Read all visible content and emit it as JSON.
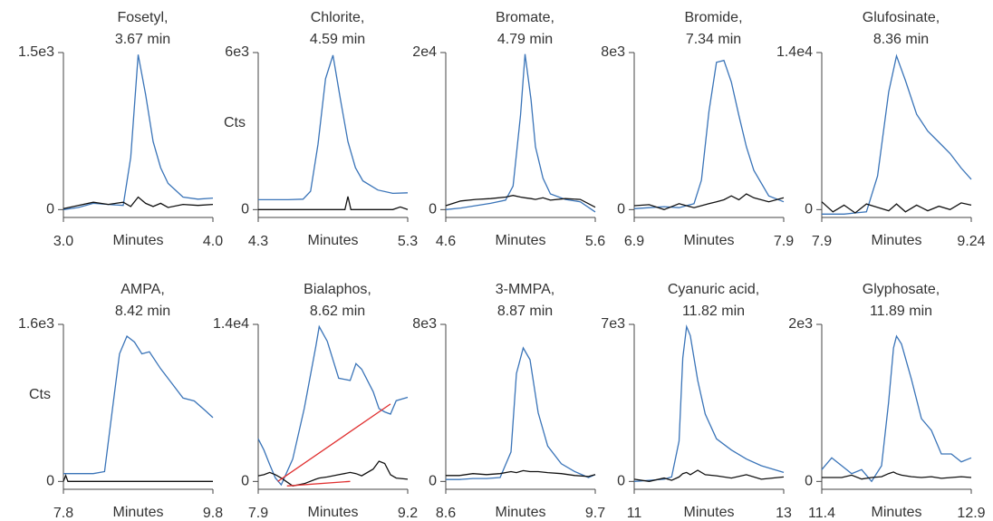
{
  "chart_data": [
    {
      "type": "line",
      "title": "Fosetyl,",
      "subtitle": "3.67 min",
      "xlabel": "Minutes",
      "xlim": [
        3.0,
        4.0
      ],
      "xticks": [
        {
          "value": 3.0,
          "label": "3.0"
        },
        {
          "value": 4.0,
          "label": "4.0"
        }
      ],
      "ylim": [
        -75,
        1500
      ],
      "yticks": [
        0,
        {
          "value": 1500,
          "label": "1.5e3"
        }
      ],
      "series": [
        {
          "color": "#3a74b8",
          "x": [
            3.0,
            3.1,
            3.2,
            3.3,
            3.4,
            3.45,
            3.5,
            3.55,
            3.6,
            3.65,
            3.7,
            3.8,
            3.9,
            4.0
          ],
          "values": [
            0,
            20,
            60,
            50,
            40,
            500,
            1480,
            1100,
            650,
            400,
            250,
            120,
            100,
            110
          ]
        },
        {
          "color": "#111111",
          "x": [
            3.0,
            3.1,
            3.2,
            3.3,
            3.4,
            3.45,
            3.5,
            3.55,
            3.6,
            3.65,
            3.7,
            3.8,
            3.9,
            4.0
          ],
          "values": [
            10,
            40,
            70,
            50,
            70,
            30,
            120,
            60,
            30,
            60,
            20,
            50,
            40,
            50
          ]
        }
      ]
    },
    {
      "type": "line",
      "title": "Chlorite,",
      "subtitle": "4.59 min",
      "xlabel": "Minutes",
      "ylabel": "Cts",
      "xlim": [
        4.3,
        5.3
      ],
      "xticks": [
        4.3,
        5.3
      ],
      "ylim": [
        -300,
        6000
      ],
      "yticks": [
        0,
        {
          "value": 6000,
          "label": "6e3"
        }
      ],
      "series": [
        {
          "color": "#3a74b8",
          "x": [
            4.3,
            4.4,
            4.5,
            4.6,
            4.65,
            4.7,
            4.75,
            4.8,
            4.85,
            4.9,
            4.95,
            5.0,
            5.1,
            5.2,
            5.3
          ],
          "values": [
            380,
            380,
            380,
            400,
            700,
            2500,
            5000,
            5900,
            4200,
            2600,
            1600,
            1100,
            750,
            620,
            640
          ]
        },
        {
          "color": "#111111",
          "x": [
            4.3,
            4.4,
            4.5,
            4.6,
            4.7,
            4.8,
            4.88,
            4.9,
            4.92,
            5.0,
            5.1,
            5.2,
            5.25,
            5.3
          ],
          "values": [
            0,
            0,
            0,
            0,
            0,
            0,
            0,
            500,
            0,
            0,
            0,
            0,
            100,
            0
          ]
        }
      ]
    },
    {
      "type": "line",
      "title": "Bromate,",
      "subtitle": "4.79 min",
      "xlabel": "Minutes",
      "xlim": [
        4.6,
        5.6
      ],
      "xticks": [
        4.6,
        5.6
      ],
      "ylim": [
        -1000,
        20000
      ],
      "yticks": [
        0,
        {
          "value": 20000,
          "label": "2e4"
        }
      ],
      "series": [
        {
          "color": "#3a74b8",
          "x": [
            4.6,
            4.7,
            4.8,
            4.9,
            5.0,
            5.05,
            5.1,
            5.13,
            5.17,
            5.2,
            5.25,
            5.3,
            5.4,
            5.5,
            5.6
          ],
          "values": [
            0,
            200,
            500,
            800,
            1200,
            3000,
            12000,
            19800,
            14000,
            8000,
            4000,
            2000,
            1300,
            1000,
            -300
          ]
        },
        {
          "color": "#111111",
          "x": [
            4.6,
            4.7,
            4.8,
            4.9,
            5.0,
            5.05,
            5.1,
            5.13,
            5.17,
            5.2,
            5.25,
            5.3,
            5.4,
            5.5,
            5.6
          ],
          "values": [
            500,
            1100,
            1300,
            1400,
            1600,
            1800,
            1600,
            1500,
            1400,
            1300,
            1500,
            1200,
            1400,
            1300,
            300
          ]
        }
      ]
    },
    {
      "type": "line",
      "title": "Bromide,",
      "subtitle": "7.34 min",
      "xlabel": "Minutes",
      "xlim": [
        6.9,
        7.9
      ],
      "xticks": [
        6.9,
        7.9
      ],
      "ylim": [
        -400,
        8000
      ],
      "yticks": [
        0,
        {
          "value": 8000,
          "label": "8e3"
        }
      ],
      "series": [
        {
          "color": "#3a74b8",
          "x": [
            6.9,
            7.0,
            7.1,
            7.2,
            7.3,
            7.35,
            7.4,
            7.45,
            7.5,
            7.55,
            7.6,
            7.65,
            7.7,
            7.8,
            7.9
          ],
          "values": [
            50,
            100,
            150,
            100,
            300,
            1500,
            5000,
            7500,
            7600,
            6500,
            4800,
            3200,
            2000,
            700,
            400
          ]
        },
        {
          "color": "#111111",
          "x": [
            6.9,
            7.0,
            7.1,
            7.2,
            7.3,
            7.35,
            7.4,
            7.45,
            7.5,
            7.55,
            7.6,
            7.65,
            7.7,
            7.8,
            7.9
          ],
          "values": [
            200,
            250,
            0,
            300,
            100,
            200,
            300,
            400,
            500,
            700,
            500,
            800,
            600,
            400,
            600
          ]
        }
      ]
    },
    {
      "type": "line",
      "title": "Glufosinate,",
      "subtitle": "8.36 min",
      "xlabel": "Minutes",
      "xlim": [
        7.9,
        9.24
      ],
      "xticks": [
        7.9,
        9.24
      ],
      "ylim": [
        -700,
        14000
      ],
      "yticks": [
        0,
        {
          "value": 14000,
          "label": "1.4e4"
        }
      ],
      "series": [
        {
          "color": "#3a74b8",
          "x": [
            7.9,
            8.0,
            8.1,
            8.2,
            8.3,
            8.4,
            8.5,
            8.57,
            8.65,
            8.75,
            8.85,
            8.95,
            9.05,
            9.15,
            9.24
          ],
          "values": [
            -400,
            -400,
            -400,
            -300,
            -200,
            3000,
            10500,
            13700,
            11500,
            8500,
            7000,
            6000,
            5000,
            3700,
            2700
          ]
        },
        {
          "color": "#111111",
          "x": [
            7.9,
            8.0,
            8.1,
            8.2,
            8.3,
            8.4,
            8.5,
            8.57,
            8.65,
            8.75,
            8.85,
            8.95,
            9.05,
            9.15,
            9.24
          ],
          "values": [
            700,
            -200,
            400,
            -300,
            500,
            200,
            -100,
            500,
            -200,
            400,
            -100,
            300,
            0,
            600,
            400
          ]
        }
      ]
    },
    {
      "type": "line",
      "title": "AMPA,",
      "subtitle": "8.42 min",
      "xlabel": "Minutes",
      "ylabel": "Cts",
      "xlim": [
        7.8,
        9.8
      ],
      "xticks": [
        7.8,
        9.8
      ],
      "ylim": [
        -80,
        1600
      ],
      "yticks": [
        0,
        {
          "value": 1600,
          "label": "1.6e3"
        }
      ],
      "series": [
        {
          "color": "#3a74b8",
          "x": [
            7.8,
            8.0,
            8.2,
            8.35,
            8.45,
            8.55,
            8.65,
            8.75,
            8.85,
            8.95,
            9.1,
            9.25,
            9.4,
            9.55,
            9.7,
            9.8
          ],
          "values": [
            80,
            80,
            80,
            100,
            700,
            1300,
            1480,
            1420,
            1300,
            1320,
            1150,
            1000,
            850,
            820,
            720,
            650
          ]
        },
        {
          "color": "#111111",
          "x": [
            7.8,
            7.83,
            7.86,
            7.9,
            8.0,
            8.2,
            8.6,
            9.0,
            9.4,
            9.8
          ],
          "values": [
            0,
            60,
            0,
            0,
            0,
            0,
            0,
            0,
            0,
            0
          ]
        }
      ]
    },
    {
      "type": "line",
      "title": "Bialaphos,",
      "subtitle": "8.62 min",
      "xlabel": "Minutes",
      "xlim": [
        7.9,
        9.2
      ],
      "xticks": [
        7.9,
        9.2
      ],
      "ylim": [
        -700,
        14000
      ],
      "yticks": [
        0,
        {
          "value": 14000,
          "label": "1.4e4"
        }
      ],
      "series": [
        {
          "color": "#3a74b8",
          "x": [
            7.9,
            7.95,
            8.0,
            8.05,
            8.1,
            8.2,
            8.3,
            8.4,
            8.43,
            8.5,
            8.6,
            8.7,
            8.75,
            8.8,
            8.9,
            8.95,
            9.0,
            9.05,
            9.1,
            9.2
          ],
          "values": [
            3800,
            2800,
            1500,
            300,
            -300,
            2000,
            6500,
            12000,
            13800,
            12500,
            9200,
            9000,
            10500,
            10000,
            8000,
            6500,
            6200,
            6000,
            7200,
            7500
          ]
        },
        {
          "color": "#111111",
          "x": [
            7.9,
            7.95,
            8.0,
            8.05,
            8.1,
            8.2,
            8.3,
            8.4,
            8.43,
            8.5,
            8.6,
            8.7,
            8.75,
            8.8,
            8.9,
            8.95,
            9.0,
            9.05,
            9.1,
            9.2
          ],
          "values": [
            500,
            600,
            800,
            600,
            300,
            -400,
            -200,
            200,
            300,
            400,
            600,
            800,
            700,
            500,
            1100,
            1800,
            1600,
            600,
            300,
            200
          ]
        },
        {
          "color": "#e03030",
          "x": [
            8.07,
            9.05
          ],
          "values": [
            0,
            6900
          ]
        },
        {
          "color": "#e03030",
          "x": [
            8.15,
            8.7
          ],
          "values": [
            -400,
            0
          ]
        }
      ]
    },
    {
      "type": "line",
      "title": "3-MMPA,",
      "subtitle": "8.87 min",
      "xlabel": "Minutes",
      "xlim": [
        8.6,
        9.7
      ],
      "xticks": [
        8.6,
        9.7
      ],
      "ylim": [
        -400,
        8000
      ],
      "yticks": [
        0,
        {
          "value": 8000,
          "label": "8e3"
        }
      ],
      "series": [
        {
          "color": "#3a74b8",
          "x": [
            8.6,
            8.7,
            8.8,
            8.9,
            9.0,
            9.08,
            9.12,
            9.17,
            9.22,
            9.28,
            9.35,
            9.45,
            9.55,
            9.65,
            9.7
          ],
          "values": [
            100,
            100,
            150,
            150,
            200,
            1500,
            5500,
            6800,
            6200,
            3500,
            1800,
            900,
            500,
            200,
            350
          ]
        },
        {
          "color": "#111111",
          "x": [
            8.6,
            8.7,
            8.8,
            8.9,
            9.0,
            9.08,
            9.12,
            9.17,
            9.22,
            9.28,
            9.35,
            9.45,
            9.55,
            9.65,
            9.7
          ],
          "values": [
            300,
            300,
            400,
            350,
            400,
            500,
            450,
            550,
            500,
            500,
            450,
            400,
            300,
            250,
            350
          ]
        }
      ]
    },
    {
      "type": "line",
      "title": "Cyanuric acid,",
      "subtitle": "11.82 min",
      "xlabel": "Minutes",
      "xlim": [
        11,
        13
      ],
      "xticks": [
        11,
        13
      ],
      "ylim": [
        -350,
        7000
      ],
      "yticks": [
        0,
        {
          "value": 7000,
          "label": "7e3"
        }
      ],
      "series": [
        {
          "color": "#3a74b8",
          "x": [
            11,
            11.2,
            11.4,
            11.5,
            11.6,
            11.65,
            11.7,
            11.75,
            11.85,
            11.95,
            12.1,
            12.3,
            12.5,
            12.7,
            13
          ],
          "values": [
            0,
            50,
            100,
            200,
            1800,
            5500,
            6900,
            6500,
            4500,
            3000,
            1900,
            1400,
            1000,
            700,
            400
          ]
        },
        {
          "color": "#111111",
          "x": [
            11,
            11.2,
            11.4,
            11.5,
            11.6,
            11.65,
            11.7,
            11.75,
            11.85,
            11.95,
            12.1,
            12.3,
            12.5,
            12.7,
            13
          ],
          "values": [
            100,
            0,
            150,
            50,
            200,
            350,
            400,
            300,
            500,
            300,
            250,
            150,
            300,
            100,
            200
          ]
        }
      ]
    },
    {
      "type": "line",
      "title": "Glyphosate,",
      "subtitle": "11.89 min",
      "xlabel": "Minutes",
      "xlim": [
        11.4,
        12.9
      ],
      "xticks": [
        11.4,
        12.9
      ],
      "ylim": [
        -100,
        2000
      ],
      "yticks": [
        0,
        {
          "value": 2000,
          "label": "2e3"
        }
      ],
      "series": [
        {
          "color": "#3a74b8",
          "x": [
            11.4,
            11.5,
            11.6,
            11.7,
            11.8,
            11.9,
            12.0,
            12.07,
            12.12,
            12.15,
            12.2,
            12.3,
            12.4,
            12.5,
            12.6,
            12.7,
            12.8,
            12.9
          ],
          "values": [
            150,
            300,
            200,
            100,
            150,
            0,
            200,
            1000,
            1700,
            1850,
            1750,
            1300,
            800,
            650,
            350,
            350,
            250,
            300
          ]
        },
        {
          "color": "#111111",
          "x": [
            11.4,
            11.5,
            11.6,
            11.7,
            11.8,
            11.9,
            12.0,
            12.07,
            12.12,
            12.15,
            12.2,
            12.3,
            12.4,
            12.5,
            12.6,
            12.7,
            12.8,
            12.9
          ],
          "values": [
            50,
            50,
            50,
            80,
            30,
            50,
            60,
            100,
            120,
            100,
            80,
            60,
            50,
            60,
            40,
            50,
            60,
            50
          ]
        }
      ]
    }
  ]
}
